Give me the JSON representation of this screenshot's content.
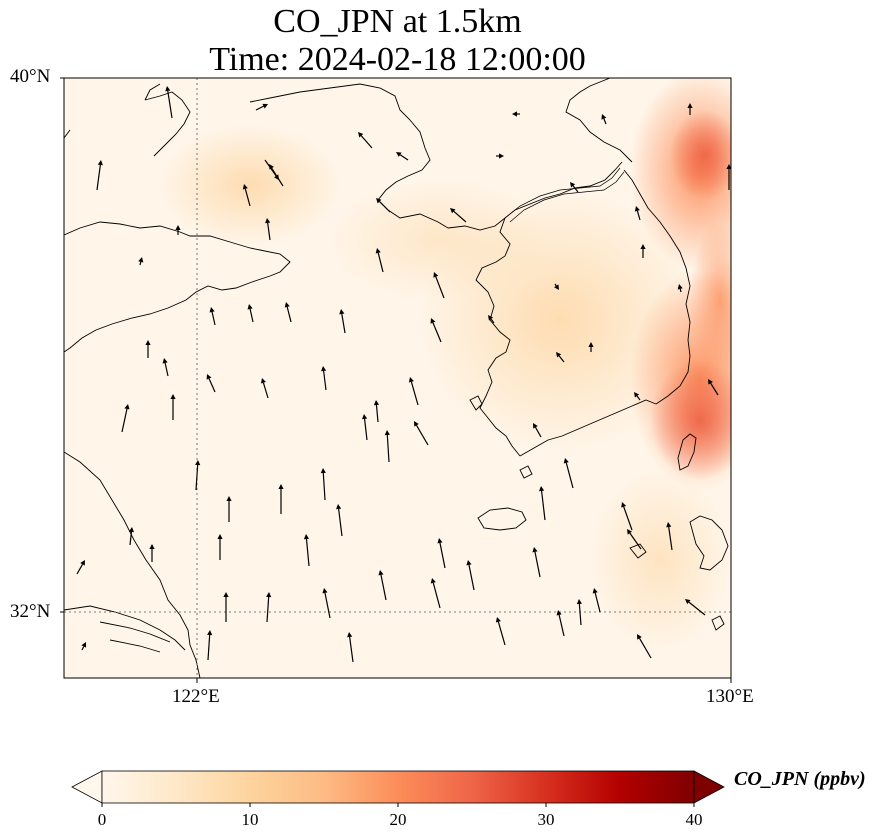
{
  "title_line1": "CO_JPN at 1.5km",
  "title_line2": "Time: 2024-02-18 12:00:00",
  "lat_labels": [
    "40°N",
    "32°N"
  ],
  "lon_labels": [
    "122°E",
    "130°E"
  ],
  "map_extent": {
    "lon_min": 120,
    "lon_max": 130,
    "lat_min": 31,
    "lat_max": 40
  },
  "gridlines": {
    "lons": [
      122
    ],
    "lats": [
      32
    ],
    "style": "dotted"
  },
  "colorbar": {
    "label": "CO_JPN (ppbv)",
    "cmap": "OrRd",
    "vmin": 0,
    "vmax": 40,
    "ticks": [
      "0",
      "10",
      "20",
      "30",
      "40"
    ],
    "extend": "both",
    "stops": [
      "#fff7ec",
      "#fee8c8",
      "#fdd49e",
      "#fdbb84",
      "#fc8d59",
      "#ef6548",
      "#d7301f",
      "#b30000",
      "#7f0000"
    ]
  }
}
